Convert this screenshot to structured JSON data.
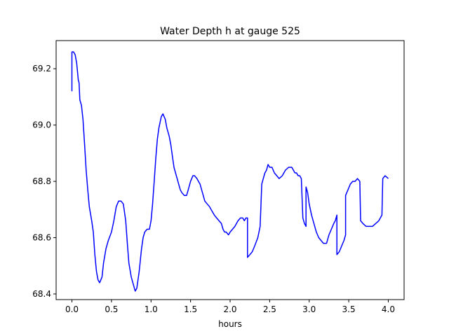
{
  "chart_data": {
    "type": "line",
    "title": "Water Depth h at gauge 525",
    "xlabel": "hours",
    "ylabel": "",
    "xlim": [
      -0.2,
      4.2
    ],
    "ylim": [
      68.38,
      69.3
    ],
    "xticks": [
      0.0,
      0.5,
      1.0,
      1.5,
      2.0,
      2.5,
      3.0,
      3.5,
      4.0
    ],
    "xtick_labels": [
      "0.0",
      "0.5",
      "1.0",
      "1.5",
      "2.0",
      "2.5",
      "3.0",
      "3.5",
      "4.0"
    ],
    "yticks": [
      68.4,
      68.6,
      68.8,
      69.0,
      69.2
    ],
    "ytick_labels": [
      "68.4",
      "68.6",
      "68.8",
      "69.0",
      "69.2"
    ],
    "grid": false,
    "series": [
      {
        "color": "#0000ff",
        "points": [
          [
            0.0,
            69.12
          ],
          [
            0.0,
            69.26
          ],
          [
            0.02,
            69.26
          ],
          [
            0.04,
            69.25
          ],
          [
            0.06,
            69.22
          ],
          [
            0.08,
            69.16
          ],
          [
            0.09,
            69.15
          ],
          [
            0.1,
            69.09
          ],
          [
            0.12,
            69.07
          ],
          [
            0.14,
            69.02
          ],
          [
            0.16,
            68.93
          ],
          [
            0.18,
            68.84
          ],
          [
            0.2,
            68.77
          ],
          [
            0.22,
            68.71
          ],
          [
            0.25,
            68.66
          ],
          [
            0.27,
            68.62
          ],
          [
            0.29,
            68.54
          ],
          [
            0.31,
            68.48
          ],
          [
            0.33,
            68.45
          ],
          [
            0.35,
            68.44
          ],
          [
            0.38,
            68.46
          ],
          [
            0.4,
            68.51
          ],
          [
            0.43,
            68.56
          ],
          [
            0.46,
            68.59
          ],
          [
            0.5,
            68.62
          ],
          [
            0.53,
            68.66
          ],
          [
            0.56,
            68.71
          ],
          [
            0.59,
            68.73
          ],
          [
            0.62,
            68.73
          ],
          [
            0.65,
            68.72
          ],
          [
            0.68,
            68.66
          ],
          [
            0.7,
            68.58
          ],
          [
            0.72,
            68.51
          ],
          [
            0.75,
            68.46
          ],
          [
            0.78,
            68.43
          ],
          [
            0.8,
            68.41
          ],
          [
            0.82,
            68.42
          ],
          [
            0.85,
            68.48
          ],
          [
            0.88,
            68.56
          ],
          [
            0.9,
            68.6
          ],
          [
            0.92,
            68.62
          ],
          [
            0.95,
            68.63
          ],
          [
            0.98,
            68.63
          ],
          [
            1.0,
            68.66
          ],
          [
            1.02,
            68.72
          ],
          [
            1.04,
            68.8
          ],
          [
            1.06,
            68.88
          ],
          [
            1.08,
            68.95
          ],
          [
            1.1,
            68.99
          ],
          [
            1.13,
            69.03
          ],
          [
            1.15,
            69.04
          ],
          [
            1.18,
            69.02
          ],
          [
            1.2,
            68.99
          ],
          [
            1.23,
            68.96
          ],
          [
            1.25,
            68.93
          ],
          [
            1.27,
            68.89
          ],
          [
            1.29,
            68.85
          ],
          [
            1.31,
            68.83
          ],
          [
            1.33,
            68.81
          ],
          [
            1.35,
            68.79
          ],
          [
            1.37,
            68.77
          ],
          [
            1.39,
            68.76
          ],
          [
            1.42,
            68.75
          ],
          [
            1.45,
            68.75
          ],
          [
            1.47,
            68.77
          ],
          [
            1.5,
            68.8
          ],
          [
            1.53,
            68.82
          ],
          [
            1.55,
            68.82
          ],
          [
            1.58,
            68.81
          ],
          [
            1.6,
            68.8
          ],
          [
            1.62,
            68.79
          ],
          [
            1.64,
            68.77
          ],
          [
            1.66,
            68.75
          ],
          [
            1.68,
            68.73
          ],
          [
            1.71,
            68.72
          ],
          [
            1.74,
            68.71
          ],
          [
            1.76,
            68.7
          ],
          [
            1.78,
            68.69
          ],
          [
            1.8,
            68.68
          ],
          [
            1.83,
            68.67
          ],
          [
            1.86,
            68.66
          ],
          [
            1.89,
            68.65
          ],
          [
            1.91,
            68.63
          ],
          [
            1.93,
            68.62
          ],
          [
            1.95,
            68.62
          ],
          [
            1.98,
            68.61
          ],
          [
            2.0,
            68.62
          ],
          [
            2.03,
            68.63
          ],
          [
            2.06,
            68.64
          ],
          [
            2.08,
            68.65
          ],
          [
            2.1,
            68.66
          ],
          [
            2.13,
            68.67
          ],
          [
            2.16,
            68.67
          ],
          [
            2.18,
            68.66
          ],
          [
            2.2,
            68.67
          ],
          [
            2.22,
            68.67
          ],
          [
            2.22,
            68.53
          ],
          [
            2.25,
            68.54
          ],
          [
            2.28,
            68.55
          ],
          [
            2.31,
            68.57
          ],
          [
            2.35,
            68.6
          ],
          [
            2.38,
            68.64
          ],
          [
            2.4,
            68.79
          ],
          [
            2.42,
            68.81
          ],
          [
            2.44,
            68.83
          ],
          [
            2.46,
            68.84
          ],
          [
            2.48,
            68.86
          ],
          [
            2.5,
            68.85
          ],
          [
            2.53,
            68.85
          ],
          [
            2.56,
            68.83
          ],
          [
            2.59,
            68.82
          ],
          [
            2.62,
            68.81
          ],
          [
            2.66,
            68.82
          ],
          [
            2.7,
            68.84
          ],
          [
            2.74,
            68.85
          ],
          [
            2.78,
            68.85
          ],
          [
            2.8,
            68.84
          ],
          [
            2.82,
            68.83
          ],
          [
            2.84,
            68.83
          ],
          [
            2.86,
            68.82
          ],
          [
            2.88,
            68.82
          ],
          [
            2.9,
            68.81
          ],
          [
            2.92,
            68.67
          ],
          [
            2.94,
            68.65
          ],
          [
            2.96,
            68.64
          ],
          [
            2.96,
            68.78
          ],
          [
            2.98,
            68.76
          ],
          [
            3.0,
            68.72
          ],
          [
            3.03,
            68.68
          ],
          [
            3.06,
            68.65
          ],
          [
            3.09,
            68.62
          ],
          [
            3.12,
            68.6
          ],
          [
            3.15,
            68.59
          ],
          [
            3.18,
            68.58
          ],
          [
            3.2,
            68.58
          ],
          [
            3.22,
            68.58
          ],
          [
            3.25,
            68.61
          ],
          [
            3.28,
            68.63
          ],
          [
            3.31,
            68.65
          ],
          [
            3.33,
            68.66
          ],
          [
            3.35,
            68.68
          ],
          [
            3.35,
            68.54
          ],
          [
            3.38,
            68.55
          ],
          [
            3.41,
            68.57
          ],
          [
            3.44,
            68.59
          ],
          [
            3.46,
            68.61
          ],
          [
            3.46,
            68.75
          ],
          [
            3.49,
            68.77
          ],
          [
            3.52,
            68.79
          ],
          [
            3.55,
            68.8
          ],
          [
            3.58,
            68.8
          ],
          [
            3.61,
            68.81
          ],
          [
            3.64,
            68.8
          ],
          [
            3.65,
            68.66
          ],
          [
            3.68,
            68.65
          ],
          [
            3.72,
            68.64
          ],
          [
            3.76,
            68.64
          ],
          [
            3.8,
            68.64
          ],
          [
            3.84,
            68.65
          ],
          [
            3.88,
            68.66
          ],
          [
            3.92,
            68.68
          ],
          [
            3.93,
            68.81
          ],
          [
            3.96,
            68.82
          ],
          [
            4.0,
            68.81
          ]
        ]
      }
    ]
  }
}
